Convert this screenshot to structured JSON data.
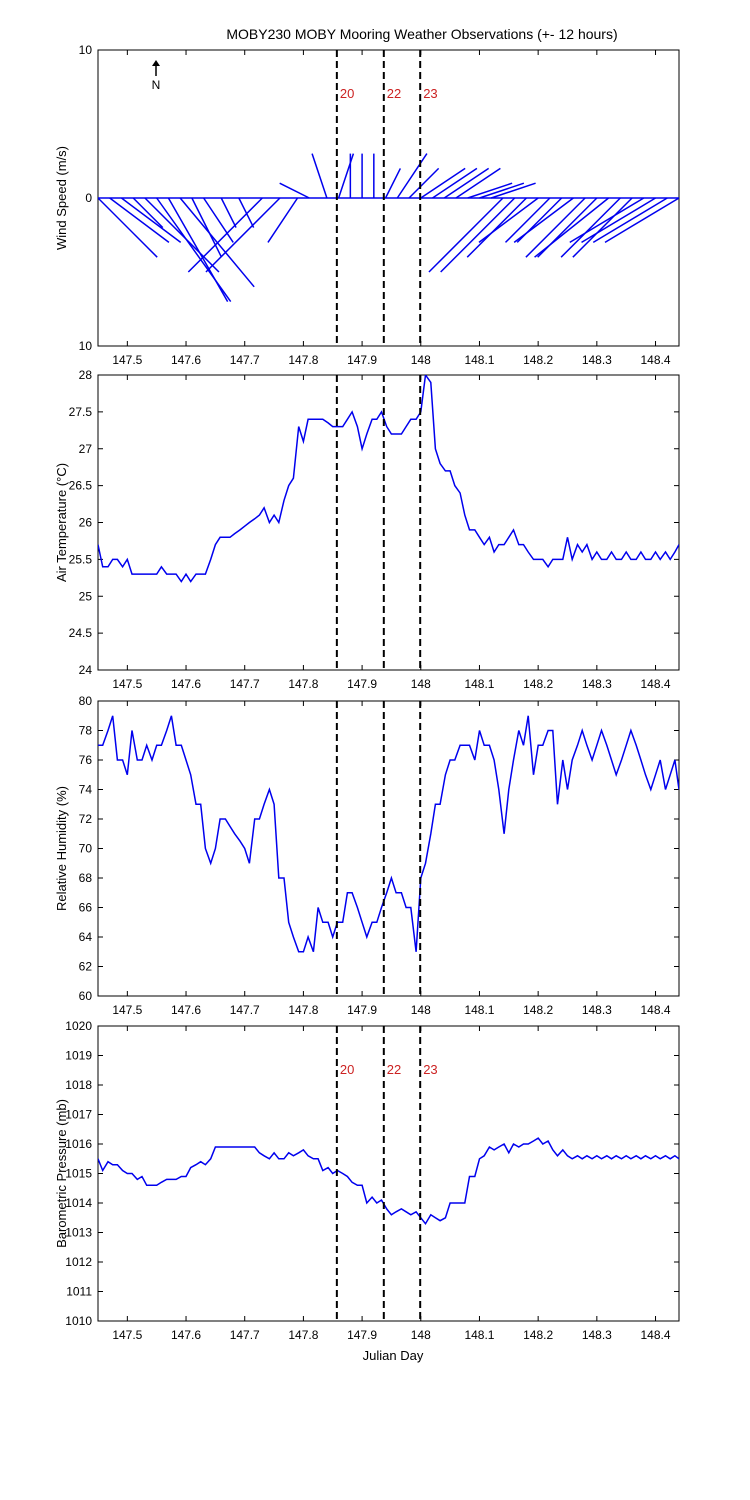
{
  "title": "MOBY230 MOBY Mooring Weather Observations (+- 12 hours)",
  "xlabel": "Julian Day",
  "north_label": "N",
  "colors": {
    "series": "#0000ee",
    "marker_text": "#cc2222",
    "axis": "#000000"
  },
  "x_ticks": [
    "147.5",
    "147.6",
    "147.7",
    "147.8",
    "147.9",
    "148",
    "148.1",
    "148.2",
    "148.3",
    "148.4"
  ],
  "markers": [
    {
      "label": "20",
      "x": 147.857
    },
    {
      "label": "22",
      "x": 147.937
    },
    {
      "label": "23",
      "x": 147.999
    }
  ],
  "chart_data": [
    {
      "type": "line",
      "subtype": "wind-vector-stick",
      "ylabel": "Wind Speed (m/s)",
      "xlim": [
        147.45,
        148.44
      ],
      "ylim": [
        -10,
        10
      ],
      "ytick_labels": [
        "10",
        "0",
        "10"
      ],
      "show_marker_labels": true,
      "series": [
        {
          "x": [
            147.45,
            147.47,
            147.49,
            147.51,
            147.53,
            147.55,
            147.57,
            147.59,
            147.61,
            147.63,
            147.66,
            147.69,
            147.73,
            147.76,
            147.79,
            147.81,
            147.84,
            147.86,
            147.88,
            147.9,
            147.92,
            147.94,
            147.96,
            147.98,
            148.0,
            148.02,
            148.04,
            148.06,
            148.08,
            148.1,
            148.12,
            148.14,
            148.16,
            148.18,
            148.2,
            148.22,
            148.24,
            148.26,
            148.28,
            148.3,
            148.32,
            148.34,
            148.36,
            148.38,
            148.4,
            148.42,
            148.44
          ],
          "u": [
            4,
            4,
            4,
            2,
            5,
            5,
            4,
            5,
            2,
            2,
            1,
            1,
            -5,
            -5,
            -2,
            -2,
            -1,
            1,
            0,
            0,
            0,
            1,
            2,
            2,
            3,
            3,
            3,
            3,
            3,
            3,
            3,
            -5,
            -5,
            -4,
            -4,
            -3,
            -3,
            -4,
            -4,
            -4,
            -5,
            -4,
            -4,
            -5,
            -5,
            -5,
            -5
          ],
          "v": [
            -4,
            -3,
            -3,
            -2,
            -5,
            -7,
            -7,
            -6,
            -4,
            -3,
            -2,
            -2,
            -5,
            -5,
            -3,
            1,
            3,
            3,
            3,
            3,
            3,
            2,
            3,
            2,
            2,
            2,
            2,
            2,
            1,
            1,
            1,
            -5,
            -5,
            -4,
            -3,
            -3,
            -3,
            -3,
            -4,
            -4,
            -4,
            -4,
            -4,
            -3,
            -3,
            -3,
            -3
          ]
        }
      ]
    },
    {
      "type": "line",
      "ylabel": "Air Temperature (°C)",
      "xlim": [
        147.45,
        148.44
      ],
      "ylim": [
        24,
        28
      ],
      "ytick_labels": [
        "24",
        "24.5",
        "25",
        "25.5",
        "26",
        "26.5",
        "27",
        "27.5",
        "28"
      ],
      "show_marker_labels": false,
      "series": [
        {
          "x": [
            147.45,
            147.458,
            147.467,
            147.475,
            147.483,
            147.492,
            147.5,
            147.508,
            147.517,
            147.525,
            147.533,
            147.542,
            147.55,
            147.558,
            147.567,
            147.575,
            147.583,
            147.592,
            147.6,
            147.608,
            147.617,
            147.625,
            147.633,
            147.642,
            147.65,
            147.658,
            147.667,
            147.675,
            147.683,
            147.692,
            147.7,
            147.708,
            147.717,
            147.725,
            147.733,
            147.742,
            147.75,
            147.758,
            147.767,
            147.775,
            147.783,
            147.792,
            147.8,
            147.808,
            147.817,
            147.825,
            147.833,
            147.842,
            147.85,
            147.858,
            147.867,
            147.875,
            147.883,
            147.892,
            147.9,
            147.908,
            147.917,
            147.925,
            147.933,
            147.942,
            147.95,
            147.958,
            147.967,
            147.975,
            147.983,
            147.992,
            148.0,
            148.008,
            148.017,
            148.025,
            148.033,
            148.042,
            148.05,
            148.058,
            148.067,
            148.075,
            148.083,
            148.092,
            148.1,
            148.108,
            148.117,
            148.125,
            148.133,
            148.142,
            148.15,
            148.158,
            148.167,
            148.175,
            148.183,
            148.192,
            148.2,
            148.208,
            148.217,
            148.225,
            148.233,
            148.242,
            148.25,
            148.258,
            148.267,
            148.275,
            148.283,
            148.292,
            148.3,
            148.308,
            148.317,
            148.325,
            148.333,
            148.342,
            148.35,
            148.358,
            148.367,
            148.375,
            148.383,
            148.392,
            148.4,
            148.408,
            148.417,
            148.425,
            148.433,
            148.44
          ],
          "y": [
            25.7,
            25.4,
            25.4,
            25.5,
            25.5,
            25.4,
            25.5,
            25.3,
            25.3,
            25.3,
            25.3,
            25.3,
            25.3,
            25.4,
            25.3,
            25.3,
            25.3,
            25.2,
            25.3,
            25.2,
            25.3,
            25.3,
            25.3,
            25.5,
            25.7,
            25.8,
            25.8,
            25.8,
            25.85,
            25.9,
            25.95,
            26.0,
            26.05,
            26.1,
            26.2,
            26.0,
            26.1,
            26.0,
            26.3,
            26.5,
            26.6,
            27.3,
            27.1,
            27.4,
            27.4,
            27.4,
            27.4,
            27.35,
            27.3,
            27.3,
            27.3,
            27.4,
            27.5,
            27.3,
            27.0,
            27.2,
            27.4,
            27.4,
            27.5,
            27.3,
            27.2,
            27.2,
            27.2,
            27.3,
            27.4,
            27.4,
            27.5,
            28.0,
            27.9,
            27.0,
            26.8,
            26.7,
            26.7,
            26.5,
            26.4,
            26.1,
            25.9,
            25.9,
            25.8,
            25.7,
            25.8,
            25.6,
            25.7,
            25.7,
            25.8,
            25.9,
            25.7,
            25.7,
            25.6,
            25.5,
            25.5,
            25.5,
            25.4,
            25.5,
            25.5,
            25.5,
            25.8,
            25.5,
            25.7,
            25.6,
            25.7,
            25.5,
            25.6,
            25.5,
            25.5,
            25.6,
            25.5,
            25.5,
            25.6,
            25.5,
            25.5,
            25.6,
            25.5,
            25.5,
            25.6,
            25.5,
            25.6,
            25.5,
            25.6,
            25.7
          ]
        }
      ]
    },
    {
      "type": "line",
      "ylabel": "Relative Humidity (%)",
      "xlim": [
        147.45,
        148.44
      ],
      "ylim": [
        60,
        80
      ],
      "ytick_labels": [
        "60",
        "62",
        "64",
        "66",
        "68",
        "70",
        "72",
        "74",
        "76",
        "78",
        "80"
      ],
      "show_marker_labels": false,
      "series": [
        {
          "x": [
            147.45,
            147.458,
            147.467,
            147.475,
            147.483,
            147.492,
            147.5,
            147.508,
            147.517,
            147.525,
            147.533,
            147.542,
            147.55,
            147.558,
            147.567,
            147.575,
            147.583,
            147.592,
            147.6,
            147.608,
            147.617,
            147.625,
            147.633,
            147.642,
            147.65,
            147.658,
            147.667,
            147.675,
            147.683,
            147.692,
            147.7,
            147.708,
            147.717,
            147.725,
            147.733,
            147.742,
            147.75,
            147.758,
            147.767,
            147.775,
            147.783,
            147.792,
            147.8,
            147.808,
            147.817,
            147.825,
            147.833,
            147.842,
            147.85,
            147.858,
            147.867,
            147.875,
            147.883,
            147.892,
            147.9,
            147.908,
            147.917,
            147.925,
            147.933,
            147.942,
            147.95,
            147.958,
            147.967,
            147.975,
            147.983,
            147.992,
            148.0,
            148.008,
            148.017,
            148.025,
            148.033,
            148.042,
            148.05,
            148.058,
            148.067,
            148.075,
            148.083,
            148.092,
            148.1,
            148.108,
            148.117,
            148.125,
            148.133,
            148.142,
            148.15,
            148.158,
            148.167,
            148.175,
            148.183,
            148.192,
            148.2,
            148.208,
            148.217,
            148.225,
            148.233,
            148.242,
            148.25,
            148.258,
            148.267,
            148.275,
            148.283,
            148.292,
            148.3,
            148.308,
            148.317,
            148.325,
            148.333,
            148.342,
            148.35,
            148.358,
            148.367,
            148.375,
            148.383,
            148.392,
            148.4,
            148.408,
            148.417,
            148.425,
            148.433,
            148.44
          ],
          "y": [
            77,
            77,
            78,
            79,
            76,
            76,
            75,
            78,
            76,
            76,
            77,
            76,
            77,
            77,
            78,
            79,
            77,
            77,
            76,
            75,
            73,
            73,
            70,
            69,
            70,
            72,
            72,
            71.5,
            71,
            70.5,
            70,
            69,
            72,
            72,
            73,
            74,
            73,
            68,
            68,
            65,
            64,
            63,
            63,
            64,
            63,
            66,
            65,
            65,
            64,
            65,
            65,
            67,
            67,
            66,
            65,
            64,
            65,
            65,
            66,
            67,
            68,
            67,
            67,
            66,
            66,
            63,
            68,
            69,
            71,
            73,
            73,
            75,
            76,
            76,
            77,
            77,
            77,
            76,
            78,
            77,
            77,
            76,
            74,
            71,
            74,
            76,
            78,
            77,
            79,
            75,
            77,
            77,
            78,
            78,
            73,
            76,
            74,
            76,
            77,
            78,
            77,
            76,
            77,
            78,
            77,
            76,
            75,
            76,
            77,
            78,
            77,
            76,
            75,
            74,
            75,
            76,
            74,
            75,
            76,
            74
          ]
        }
      ]
    },
    {
      "type": "line",
      "ylabel": "Barometric Pressure (mb)",
      "xlim": [
        147.45,
        148.44
      ],
      "ylim": [
        1010,
        1020
      ],
      "ytick_labels": [
        "1010",
        "1011",
        "1012",
        "1013",
        "1014",
        "1015",
        "1016",
        "1017",
        "1018",
        "1019",
        "1020"
      ],
      "show_marker_labels": true,
      "series": [
        {
          "x": [
            147.45,
            147.458,
            147.467,
            147.475,
            147.483,
            147.492,
            147.5,
            147.508,
            147.517,
            147.525,
            147.533,
            147.542,
            147.55,
            147.558,
            147.567,
            147.575,
            147.583,
            147.592,
            147.6,
            147.608,
            147.617,
            147.625,
            147.633,
            147.642,
            147.65,
            147.658,
            147.667,
            147.675,
            147.683,
            147.692,
            147.7,
            147.708,
            147.717,
            147.725,
            147.733,
            147.742,
            147.75,
            147.758,
            147.767,
            147.775,
            147.783,
            147.792,
            147.8,
            147.808,
            147.817,
            147.825,
            147.833,
            147.842,
            147.85,
            147.858,
            147.867,
            147.875,
            147.883,
            147.892,
            147.9,
            147.908,
            147.917,
            147.925,
            147.933,
            147.942,
            147.95,
            147.958,
            147.967,
            147.975,
            147.983,
            147.992,
            148.0,
            148.008,
            148.017,
            148.025,
            148.033,
            148.042,
            148.05,
            148.058,
            148.067,
            148.075,
            148.083,
            148.092,
            148.1,
            148.108,
            148.117,
            148.125,
            148.133,
            148.142,
            148.15,
            148.158,
            148.167,
            148.175,
            148.183,
            148.192,
            148.2,
            148.208,
            148.217,
            148.225,
            148.233,
            148.242,
            148.25,
            148.258,
            148.267,
            148.275,
            148.283,
            148.292,
            148.3,
            148.308,
            148.317,
            148.325,
            148.333,
            148.342,
            148.35,
            148.358,
            148.367,
            148.375,
            148.383,
            148.392,
            148.4,
            148.408,
            148.417,
            148.425,
            148.433,
            148.44
          ],
          "y": [
            1015.5,
            1015.1,
            1015.4,
            1015.3,
            1015.3,
            1015.1,
            1015.0,
            1015.0,
            1014.8,
            1014.9,
            1014.6,
            1014.6,
            1014.6,
            1014.7,
            1014.8,
            1014.8,
            1014.8,
            1014.9,
            1014.9,
            1015.2,
            1015.3,
            1015.4,
            1015.3,
            1015.5,
            1015.9,
            1015.9,
            1015.9,
            1015.9,
            1015.9,
            1015.9,
            1015.9,
            1015.9,
            1015.9,
            1015.7,
            1015.6,
            1015.5,
            1015.7,
            1015.5,
            1015.5,
            1015.7,
            1015.6,
            1015.7,
            1015.8,
            1015.6,
            1015.5,
            1015.5,
            1015.1,
            1015.2,
            1015.0,
            1015.1,
            1015.0,
            1014.9,
            1014.7,
            1014.6,
            1014.6,
            1014.0,
            1014.2,
            1014.0,
            1014.1,
            1013.8,
            1013.6,
            1013.7,
            1013.8,
            1013.7,
            1013.6,
            1013.7,
            1013.5,
            1013.3,
            1013.6,
            1013.5,
            1013.4,
            1013.5,
            1014.0,
            1014.0,
            1014.0,
            1014.0,
            1014.9,
            1014.9,
            1015.5,
            1015.6,
            1015.9,
            1015.8,
            1015.9,
            1016.0,
            1015.7,
            1016.0,
            1015.9,
            1016.0,
            1016.0,
            1016.1,
            1016.2,
            1016.0,
            1016.1,
            1015.8,
            1015.6,
            1015.8,
            1015.6,
            1015.5,
            1015.6,
            1015.5,
            1015.6,
            1015.5,
            1015.6,
            1015.5,
            1015.6,
            1015.5,
            1015.6,
            1015.5,
            1015.6,
            1015.5,
            1015.6,
            1015.5,
            1015.6,
            1015.5,
            1015.6,
            1015.5,
            1015.6,
            1015.5,
            1015.6,
            1015.5
          ]
        }
      ]
    }
  ]
}
